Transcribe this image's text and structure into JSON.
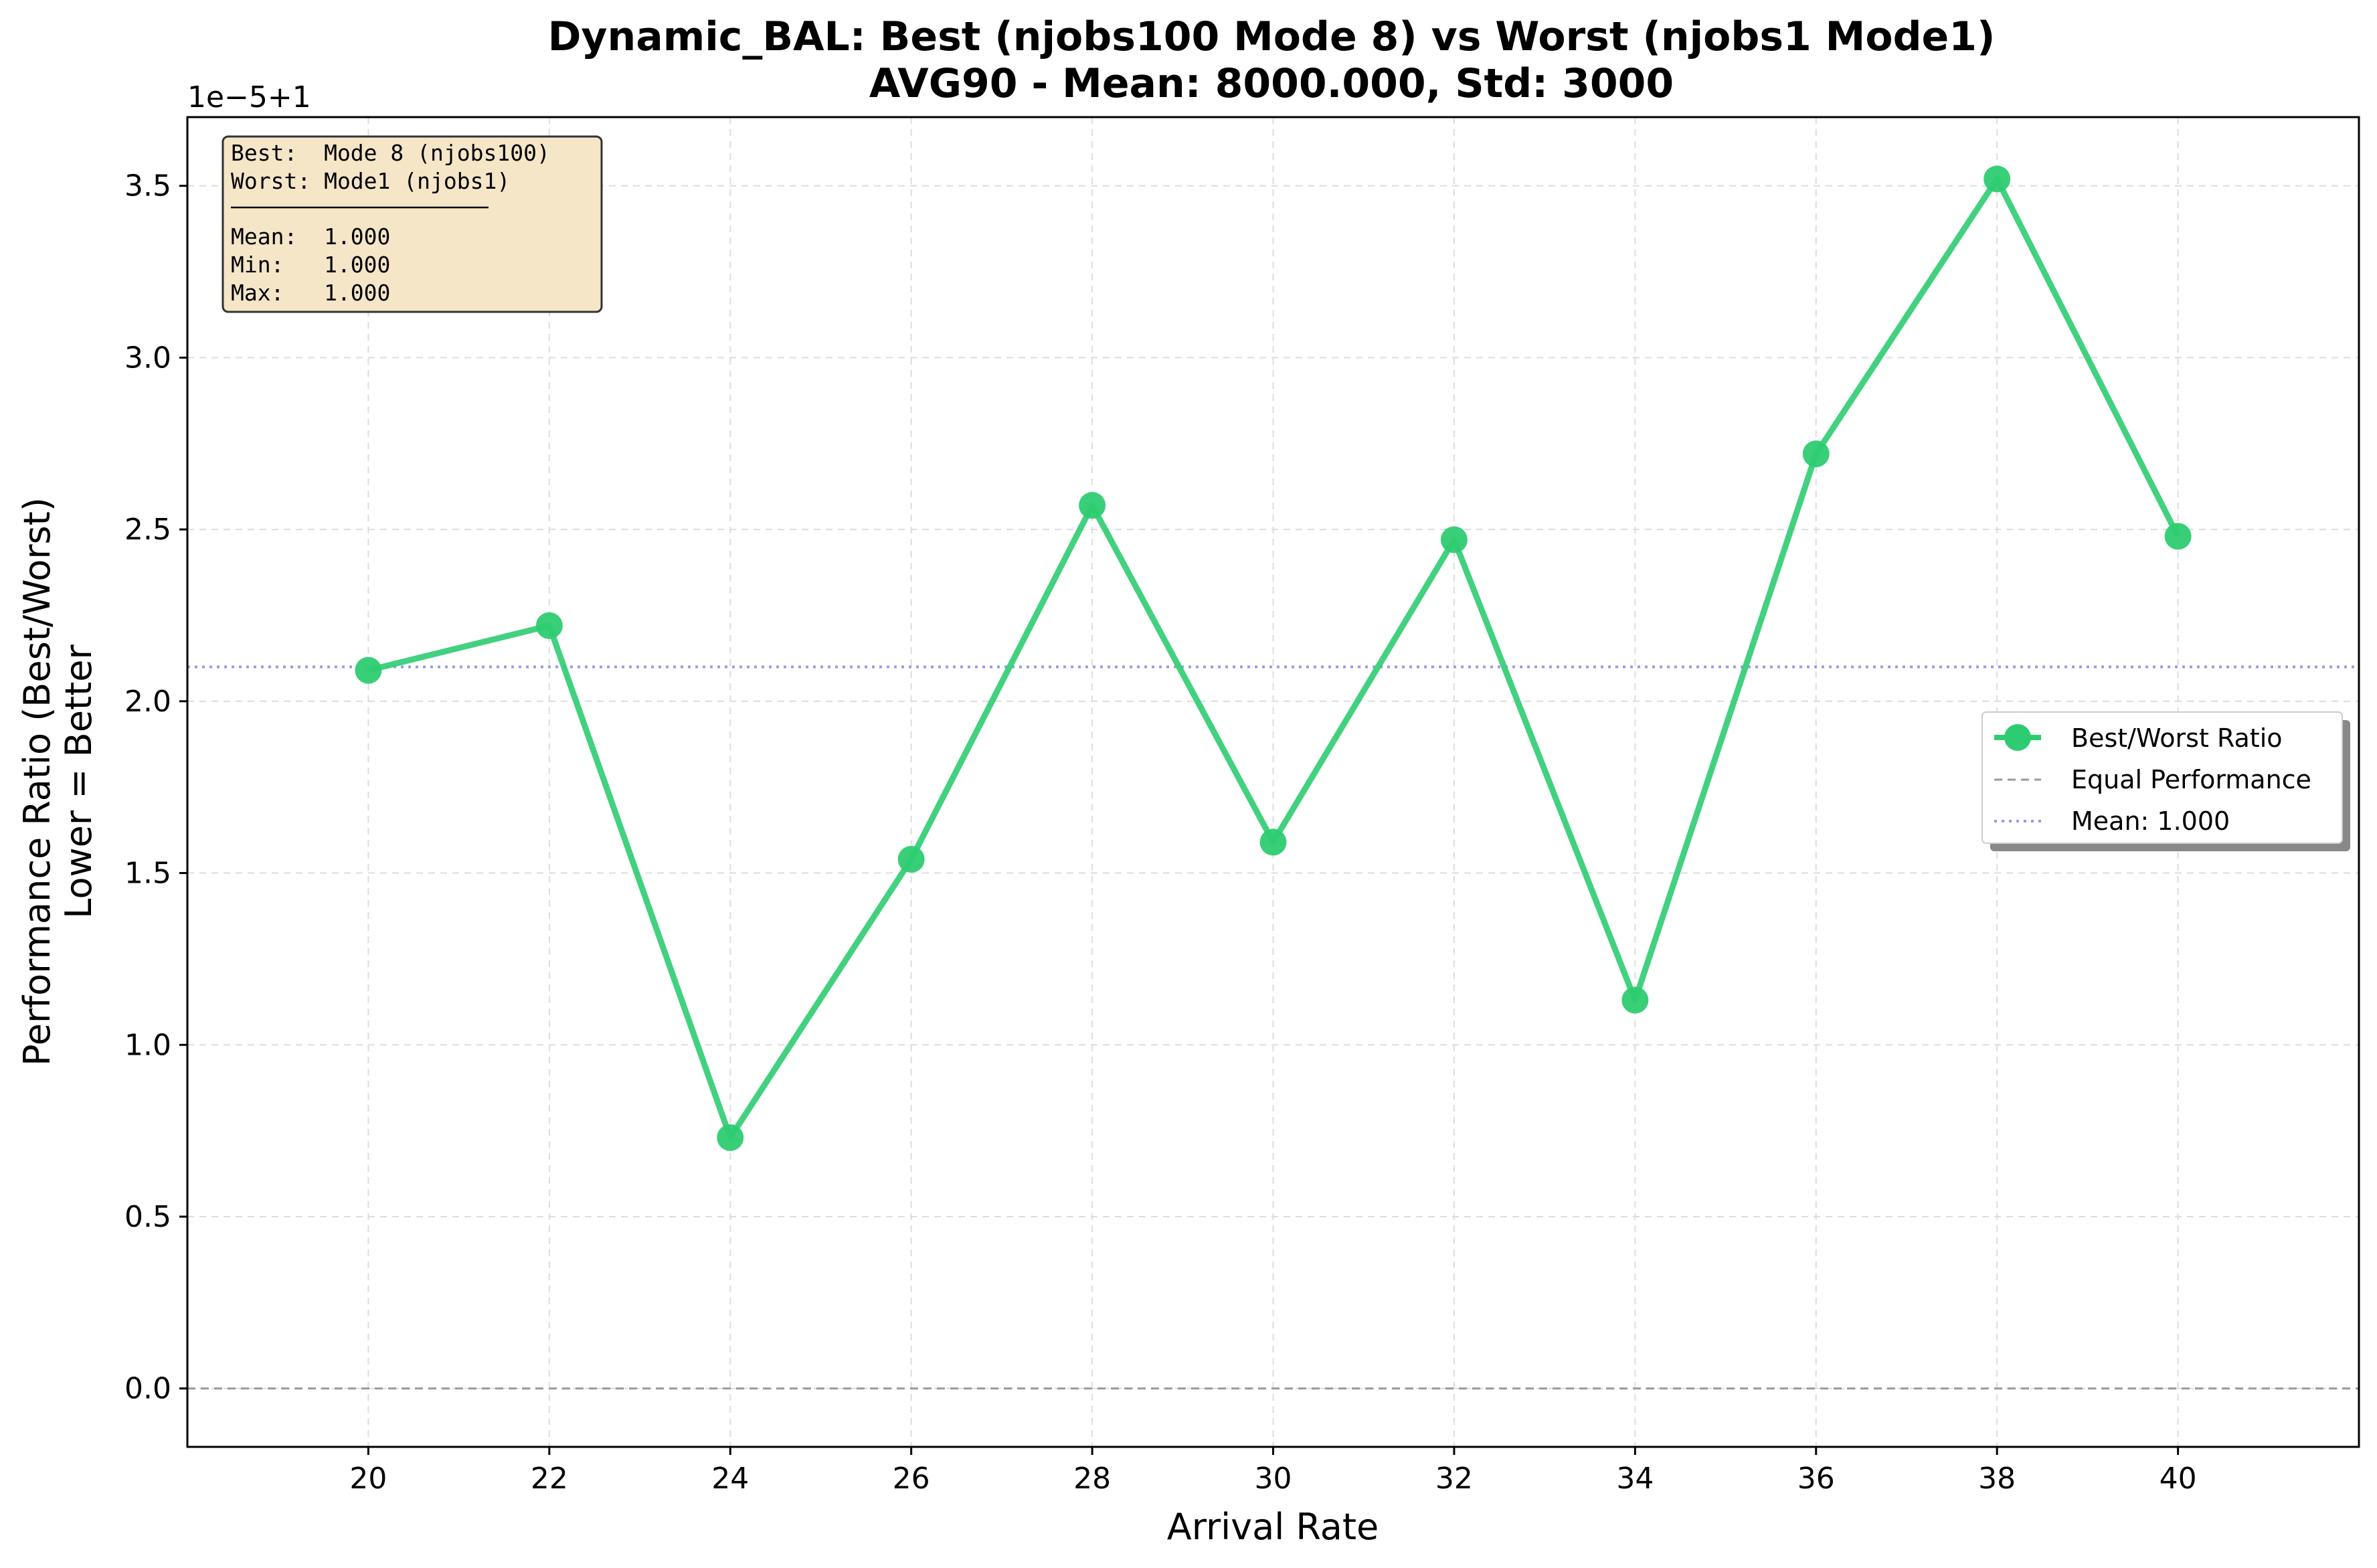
{
  "chart_data": {
    "type": "line",
    "title_line1": "Dynamic_BAL: Best (njobs100 Mode 8) vs Worst (njobs1 Mode1)",
    "title_line2": "AVG90 - Mean: 8000.000, Std: 3000",
    "xlabel": "Arrival Rate",
    "ylabel_line1": "Performance Ratio (Best/Worst)",
    "ylabel_line2": "Lower = Better",
    "y_offset_label": "1e−5+1",
    "xlim": [
      18,
      42
    ],
    "ylim": [
      -0.17,
      3.7
    ],
    "x_ticks": [
      20,
      22,
      24,
      26,
      28,
      30,
      32,
      34,
      36,
      38,
      40
    ],
    "y_ticks": [
      0.0,
      0.5,
      1.0,
      1.5,
      2.0,
      2.5,
      3.0,
      3.5
    ],
    "y_tick_labels": [
      "0.0",
      "0.5",
      "1.0",
      "1.5",
      "2.0",
      "2.5",
      "3.0",
      "3.5"
    ],
    "grid": true,
    "series": [
      {
        "name": "Best/Worst Ratio",
        "color": "#2ecc71",
        "x": [
          20,
          22,
          24,
          26,
          28,
          30,
          32,
          34,
          36,
          38,
          40
        ],
        "y": [
          2.09,
          2.22,
          0.73,
          1.54,
          2.57,
          1.59,
          2.47,
          1.13,
          2.72,
          3.52,
          2.48
        ]
      }
    ],
    "reference_lines": [
      {
        "name": "Equal Performance",
        "y": 0.0,
        "color": "#999999",
        "style": "dashed"
      },
      {
        "name": "Mean: 1.000",
        "y": 2.1,
        "color": "#9999ee",
        "style": "dotted"
      }
    ],
    "legend_placement": "center-right",
    "legend_entries": [
      "Best/Worst Ratio",
      "Equal Performance",
      "Mean: 1.000"
    ],
    "stats_box": {
      "placement": "top-left",
      "background": "#f5e6c8",
      "lines": [
        "Best:  Mode 8 (njobs100)",
        "Worst: Mode1 (njobs1)",
        "",
        "Mean:  1.000",
        "Min:   1.000",
        "Max:   1.000"
      ]
    }
  }
}
